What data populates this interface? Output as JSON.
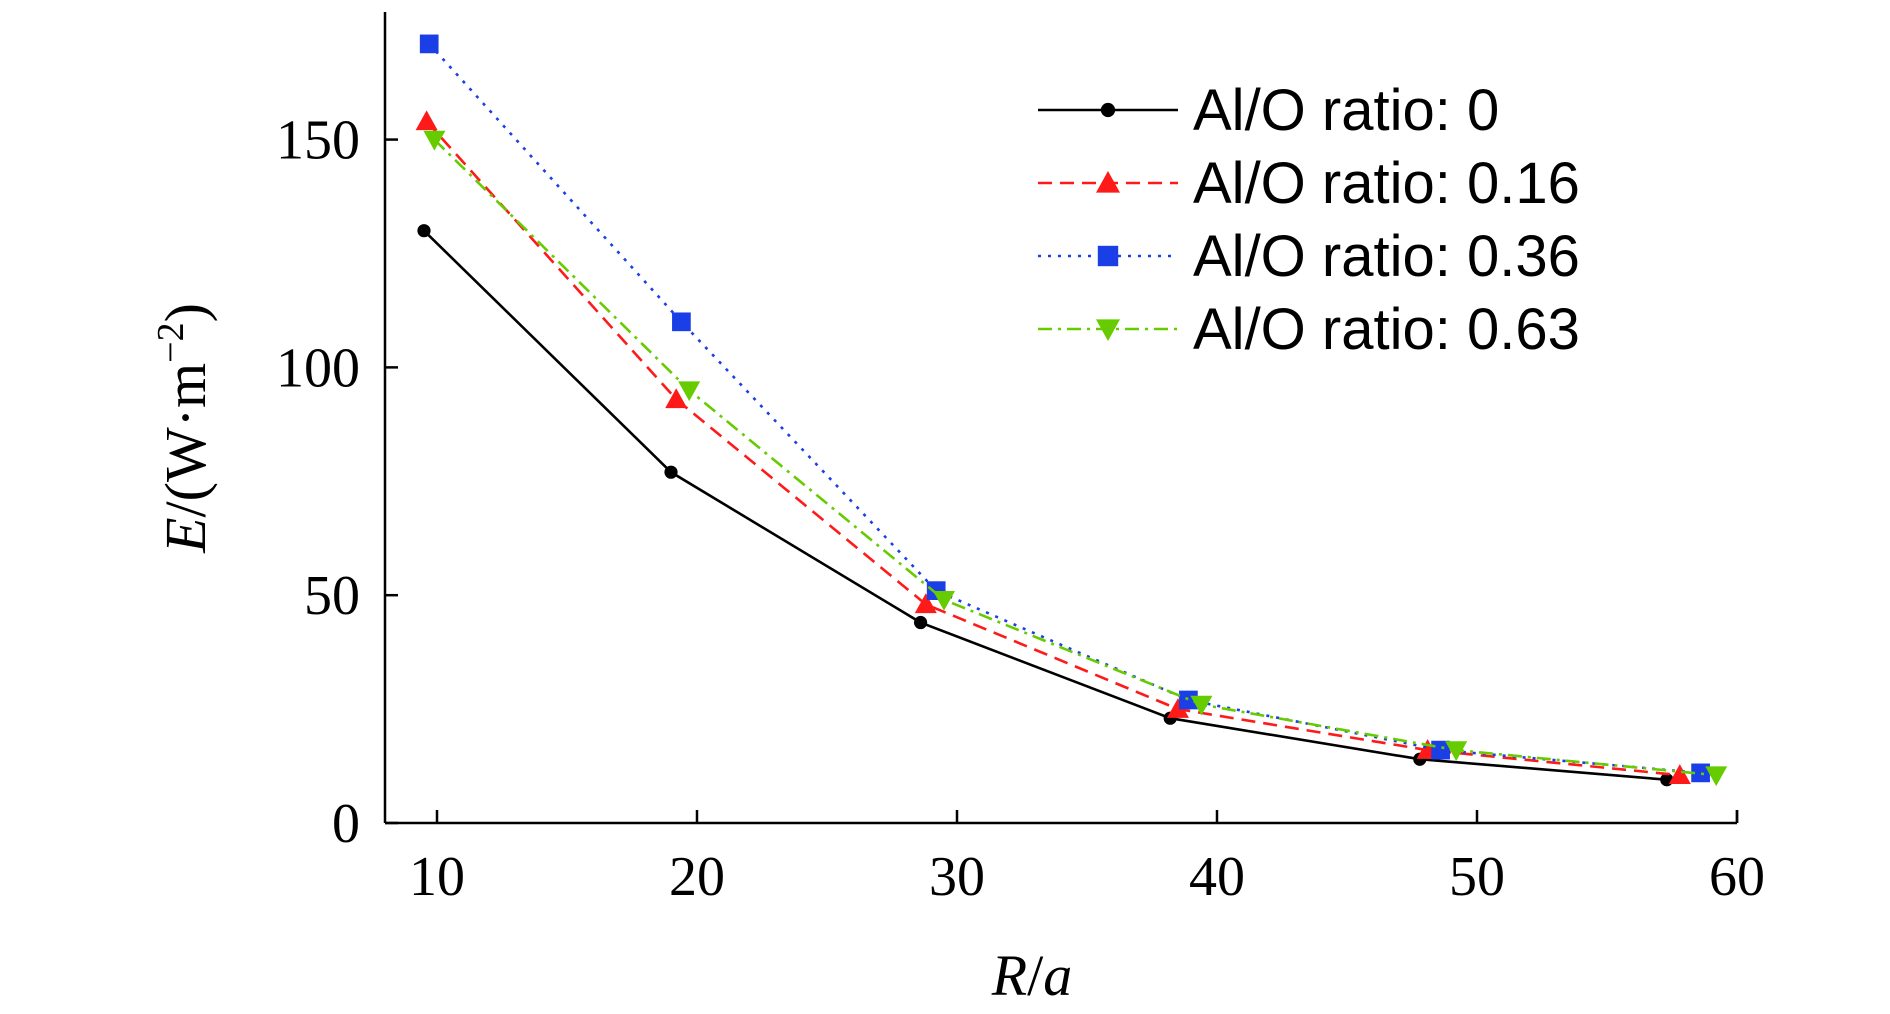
{
  "chart_data": {
    "type": "line",
    "title": "",
    "xlabel": {
      "var": "R",
      "unit": "a"
    },
    "ylabel": {
      "var": "E",
      "unit": "W·m",
      "exp": "−2"
    },
    "xlim": [
      8,
      60
    ],
    "ylim": [
      0,
      178
    ],
    "xticks": [
      10,
      20,
      30,
      40,
      50,
      60
    ],
    "yticks": [
      0,
      50,
      100,
      150
    ],
    "legend_position": "top-right",
    "series": [
      {
        "name": "Al/O ratio: 0",
        "color": "#000000",
        "dash": "solid",
        "marker": "circle",
        "x": [
          9.5,
          19.0,
          28.6,
          38.2,
          47.8,
          57.3
        ],
        "y": [
          130,
          77,
          44,
          23,
          14,
          9.5
        ]
      },
      {
        "name": "Al/O ratio: 0.16",
        "color": "#ff1a1a",
        "dash": "dashed",
        "marker": "triangle-up",
        "x": [
          9.6,
          19.2,
          28.8,
          38.5,
          48.1,
          57.8
        ],
        "y": [
          154,
          93,
          48,
          25,
          16,
          10.5
        ]
      },
      {
        "name": "Al/O ratio: 0.36",
        "color": "#1a3fe6",
        "dash": "dotted",
        "marker": "square",
        "x": [
          9.7,
          19.4,
          29.2,
          38.9,
          48.6,
          58.6
        ],
        "y": [
          171,
          110,
          51,
          27,
          16,
          11
        ]
      },
      {
        "name": "Al/O ratio: 0.63",
        "color": "#66cc00",
        "dash": "dashdot",
        "marker": "triangle-down",
        "x": [
          9.9,
          19.7,
          29.5,
          39.4,
          49.2,
          59.2
        ],
        "y": [
          150,
          95,
          49,
          26,
          16,
          10.5
        ]
      }
    ]
  }
}
